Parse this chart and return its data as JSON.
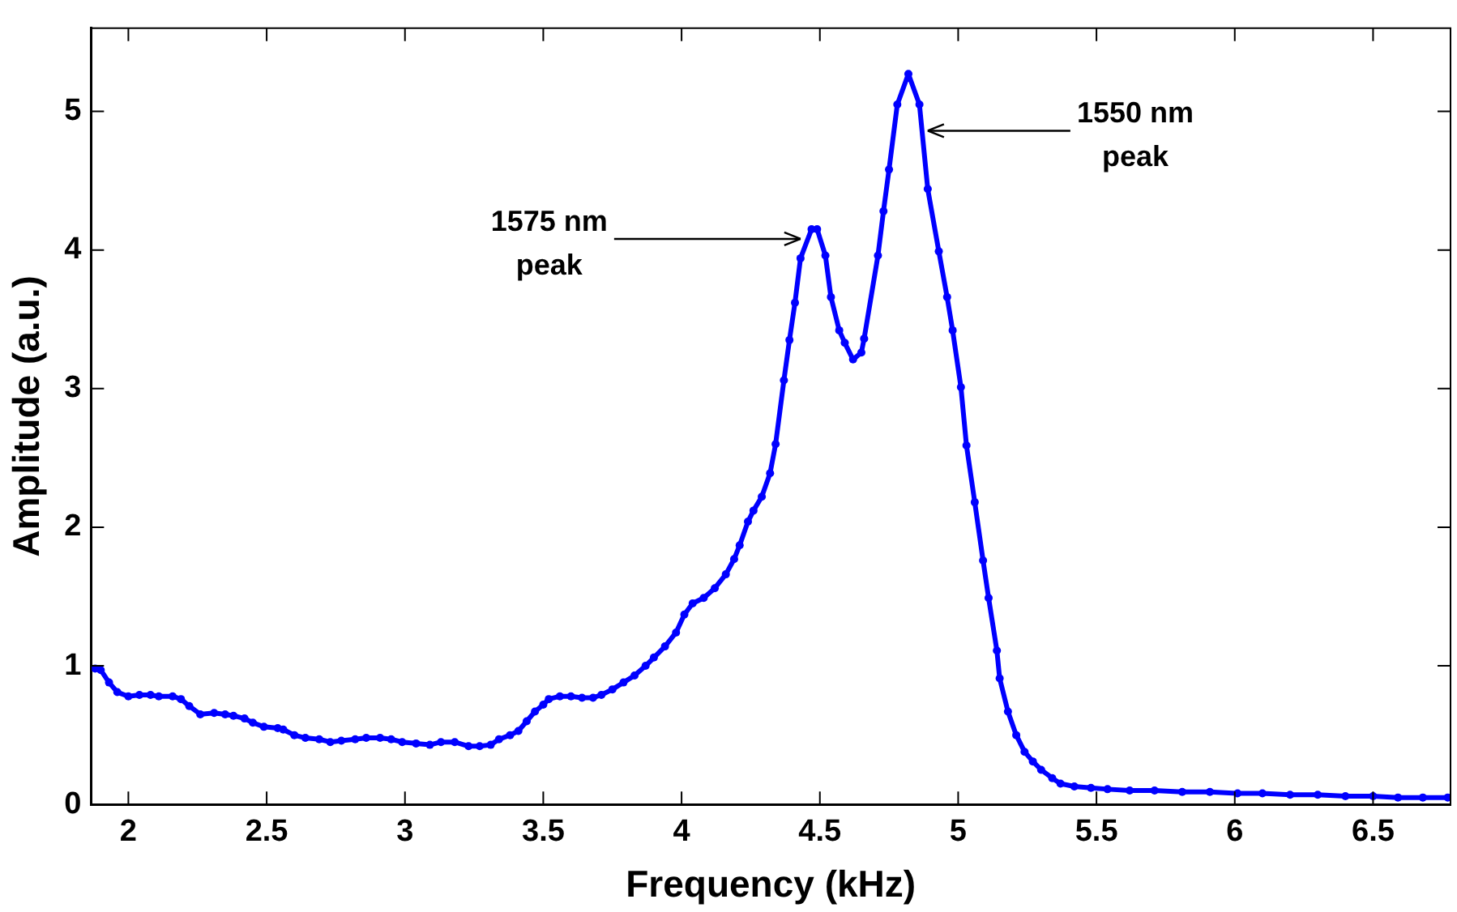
{
  "chart_data": {
    "type": "line",
    "xlabel": "Frequency (kHz)",
    "ylabel": "Amplitude (a.u.)",
    "xlim": [
      1.865,
      6.78
    ],
    "xticks": [
      2,
      2.5,
      3,
      3.5,
      4,
      4.5,
      5,
      5.5,
      6,
      6.5
    ],
    "ylim": [
      0,
      5.6
    ],
    "yticks": [
      0,
      1,
      2,
      3,
      4,
      5
    ],
    "grid": false,
    "legend": false,
    "marker": "circle",
    "line_style": "solid",
    "annotations": [
      {
        "text": "1575 nm\npeak",
        "x": 4.43,
        "y": 4.08
      },
      {
        "text": "1550 nm\npeak",
        "x": 4.89,
        "y": 4.86
      }
    ],
    "series": [
      {
        "color": "#0000ff",
        "x": [
          1.88,
          1.9,
          1.93,
          1.96,
          2.0,
          2.04,
          2.08,
          2.11,
          2.16,
          2.19,
          2.22,
          2.26,
          2.31,
          2.35,
          2.38,
          2.42,
          2.45,
          2.49,
          2.54,
          2.56,
          2.6,
          2.64,
          2.69,
          2.73,
          2.77,
          2.82,
          2.86,
          2.91,
          2.95,
          2.99,
          3.04,
          3.09,
          3.13,
          3.18,
          3.23,
          3.27,
          3.31,
          3.34,
          3.38,
          3.41,
          3.44,
          3.47,
          3.5,
          3.52,
          3.56,
          3.6,
          3.64,
          3.68,
          3.71,
          3.75,
          3.79,
          3.83,
          3.87,
          3.9,
          3.94,
          3.98,
          4.01,
          4.04,
          4.08,
          4.12,
          4.16,
          4.19,
          4.21,
          4.24,
          4.26,
          4.29,
          4.32,
          4.34,
          4.37,
          4.39,
          4.41,
          4.43,
          4.47,
          4.49,
          4.52,
          4.54,
          4.57,
          4.59,
          4.62,
          4.65,
          4.66,
          4.71,
          4.73,
          4.75,
          4.78,
          4.82,
          4.86,
          4.89,
          4.93,
          4.96,
          4.98,
          5.01,
          5.03,
          5.06,
          5.09,
          5.11,
          5.14,
          5.15,
          5.18,
          5.21,
          5.24,
          5.27,
          5.3,
          5.34,
          5.37,
          5.42,
          5.48,
          5.54,
          5.62,
          5.71,
          5.81,
          5.91,
          6.01,
          6.1,
          6.2,
          6.3,
          6.4,
          6.5,
          6.59,
          6.68,
          6.77
        ],
        "values": [
          0.98,
          0.97,
          0.88,
          0.81,
          0.78,
          0.79,
          0.79,
          0.78,
          0.78,
          0.76,
          0.71,
          0.65,
          0.66,
          0.65,
          0.64,
          0.62,
          0.59,
          0.56,
          0.55,
          0.54,
          0.5,
          0.48,
          0.47,
          0.45,
          0.46,
          0.47,
          0.48,
          0.48,
          0.47,
          0.45,
          0.44,
          0.43,
          0.45,
          0.45,
          0.42,
          0.42,
          0.43,
          0.47,
          0.5,
          0.53,
          0.6,
          0.67,
          0.72,
          0.76,
          0.78,
          0.78,
          0.77,
          0.77,
          0.79,
          0.83,
          0.88,
          0.93,
          1.0,
          1.06,
          1.14,
          1.24,
          1.37,
          1.45,
          1.49,
          1.56,
          1.66,
          1.77,
          1.87,
          2.04,
          2.12,
          2.22,
          2.39,
          2.6,
          3.06,
          3.35,
          3.62,
          3.94,
          4.15,
          4.15,
          3.96,
          3.66,
          3.42,
          3.33,
          3.21,
          3.26,
          3.36,
          3.96,
          4.28,
          4.58,
          5.05,
          5.27,
          5.05,
          4.44,
          3.99,
          3.66,
          3.42,
          3.01,
          2.59,
          2.18,
          1.76,
          1.49,
          1.11,
          0.91,
          0.67,
          0.5,
          0.38,
          0.31,
          0.25,
          0.19,
          0.15,
          0.13,
          0.12,
          0.11,
          0.1,
          0.1,
          0.09,
          0.09,
          0.08,
          0.08,
          0.07,
          0.07,
          0.06,
          0.06,
          0.05,
          0.05,
          0.05
        ]
      }
    ]
  }
}
